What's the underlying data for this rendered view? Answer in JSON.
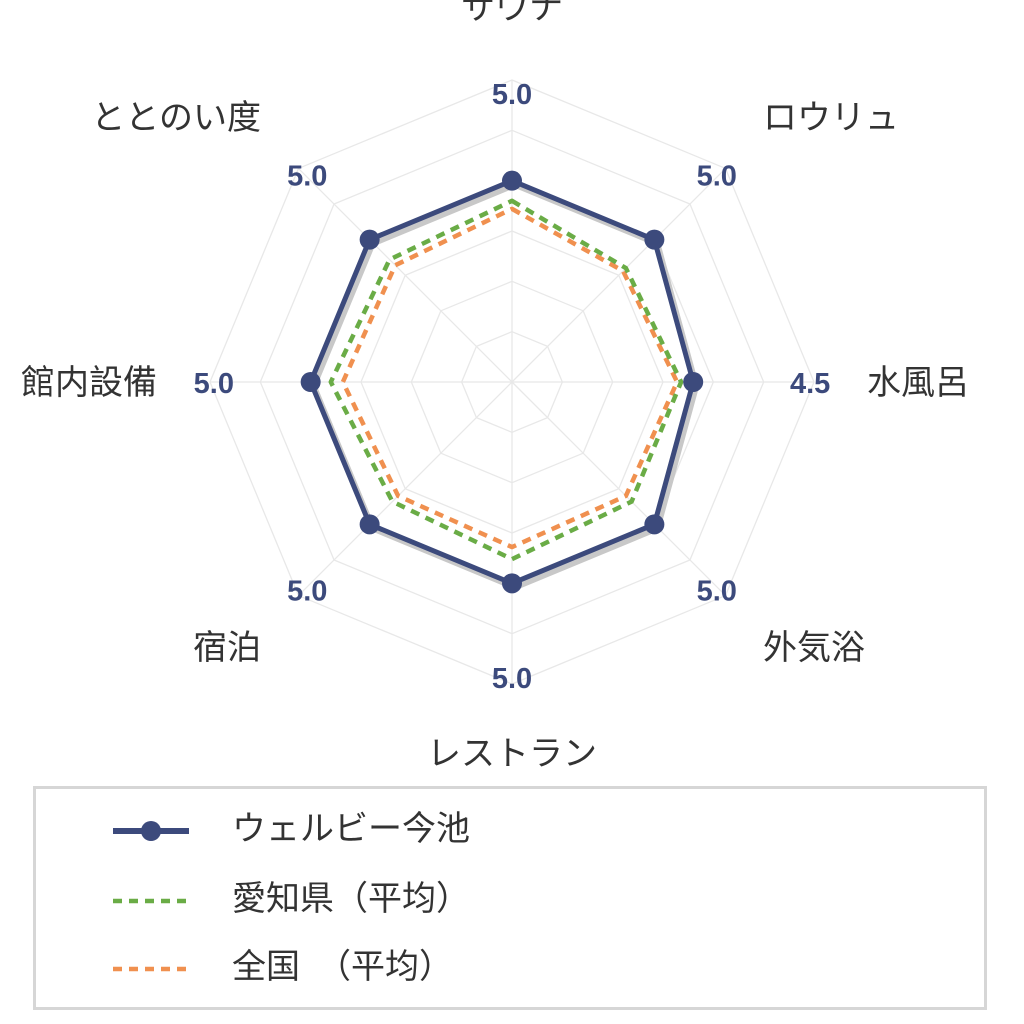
{
  "chart_data": {
    "type": "radar",
    "axes": [
      "サウナ",
      "ロウリュ",
      "水風呂",
      "外気浴",
      "レストラン",
      "宿泊",
      "館内設備",
      "ととのい度"
    ],
    "value_labels": [
      "5.0",
      "5.0",
      "4.5",
      "5.0",
      "5.0",
      "5.0",
      "5.0",
      "5.0"
    ],
    "rmax": 7.5,
    "gridlines": true,
    "legend_position": "bottom",
    "series": [
      {
        "name": "ウェルビー今池",
        "values": [
          5.0,
          5.0,
          4.5,
          5.0,
          5.0,
          5.0,
          5.0,
          5.0
        ],
        "color": "#3c4a7c",
        "style": "solid-markers"
      },
      {
        "name": "愛知県（平均）",
        "values": [
          4.5,
          4.0,
          4.2,
          4.2,
          4.4,
          4.2,
          4.5,
          4.3
        ],
        "color": "#6aac46",
        "style": "dashed"
      },
      {
        "name": "全国　（平均）",
        "values": [
          4.3,
          3.9,
          4.1,
          4.0,
          4.1,
          4.0,
          4.2,
          4.1
        ],
        "color": "#f0904f",
        "style": "dashed"
      }
    ]
  }
}
